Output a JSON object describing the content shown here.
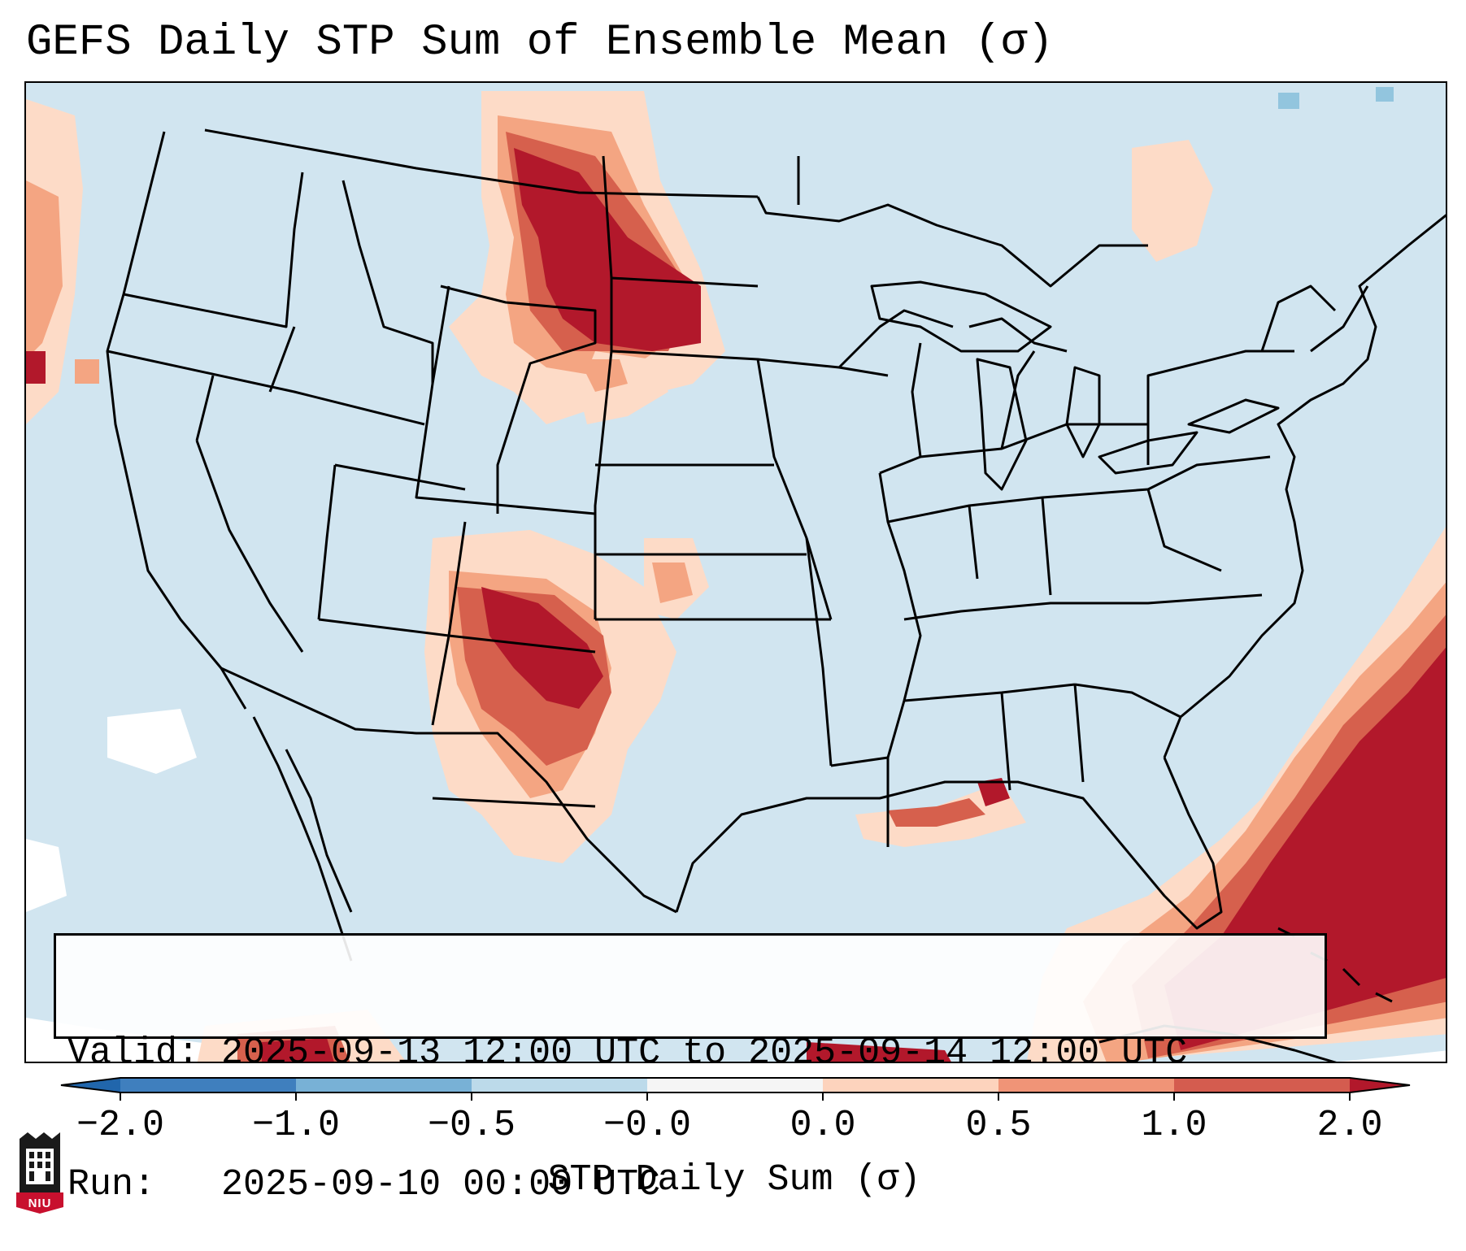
{
  "title": "GEFS Daily STP Sum of Ensemble Mean (σ)",
  "valid_line": "Valid: 2025-09-13 12:00 UTC to 2025-09-14 12:00 UTC",
  "run_line": "Run:   2025-09-10 00:00 UTC",
  "colorbar": {
    "label": "STP Daily Sum (σ)",
    "ticks": [
      "−2.0",
      "−1.0",
      "−0.5",
      "−0.0",
      "0.0",
      "0.5",
      "1.0",
      "2.0"
    ],
    "bins": [
      {
        "color": "#3f7fbe",
        "range": "-2.0 to -1.0"
      },
      {
        "color": "#78b1d6",
        "range": "-1.0 to -0.5"
      },
      {
        "color": "#bcdaea",
        "range": "-0.5 to -0.0"
      },
      {
        "color": "#f5f5f5",
        "range": "-0.0 to 0.0"
      },
      {
        "color": "#fdd3bd",
        "range": "0.0 to 0.5"
      },
      {
        "color": "#f09477",
        "range": "0.5 to 1.0"
      },
      {
        "color": "#d45c4f",
        "range": "1.0 to 2.0"
      }
    ],
    "under_color": "#2166ac",
    "over_color": "#b2182b"
  },
  "map_colors": {
    "ocean_land": "#d1e5f0",
    "light": "#fddbc7",
    "medium": "#f4a582",
    "strong": "#d6604d",
    "extreme": "#b2182b",
    "negative": "#92c5de",
    "borders": "#000000"
  },
  "logo": {
    "text": "NIU"
  }
}
